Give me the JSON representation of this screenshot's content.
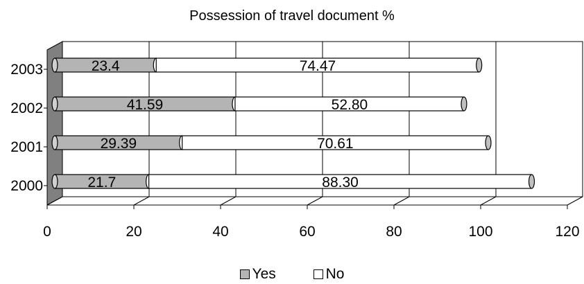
{
  "chart_data": {
    "type": "bar",
    "orientation": "horizontal",
    "stacked": true,
    "style": "3d-cylinder",
    "title": "Possession of travel document %",
    "categories": [
      "2000",
      "2001",
      "2002",
      "2003"
    ],
    "series": [
      {
        "name": "Yes",
        "values": [
          21.7,
          29.39,
          41.59,
          23.4
        ],
        "labels": [
          "21.7",
          "29.39",
          "41.59",
          "23.4"
        ],
        "color": "#b4b4b4"
      },
      {
        "name": "No",
        "values": [
          88.3,
          70.61,
          52.8,
          74.47
        ],
        "labels": [
          "88.30",
          "70.61",
          "52.80",
          "74.47"
        ],
        "color": "#ffffff"
      }
    ],
    "x_ticks": [
      "0",
      "20",
      "40",
      "60",
      "80",
      "100",
      "120"
    ],
    "xlim": [
      0,
      120
    ],
    "xlabel": "",
    "ylabel": "",
    "grid": true,
    "legend": "bottom"
  }
}
